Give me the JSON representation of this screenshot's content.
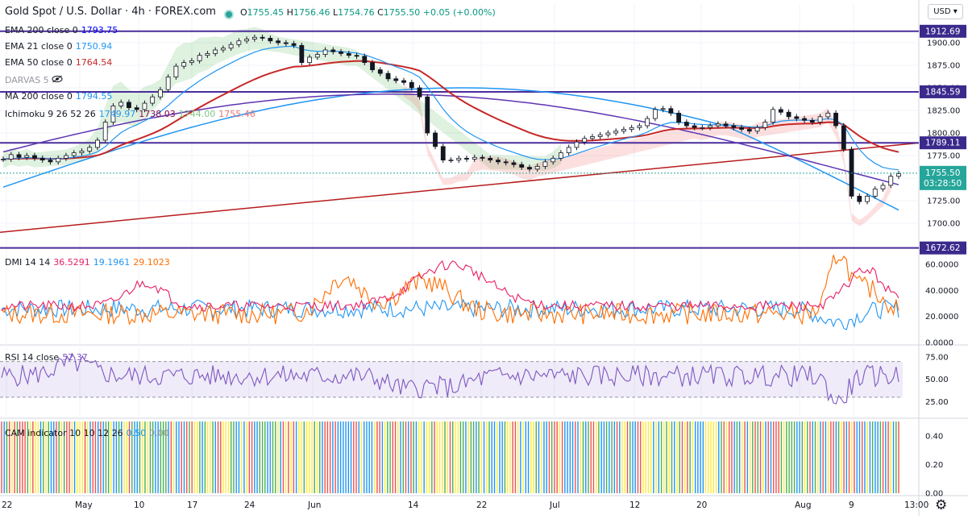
{
  "header": {
    "title": "Gold Spot / U.S. Dollar · 4h · FOREX.com",
    "ohlc": [
      {
        "k": "O",
        "v": "1755.45"
      },
      {
        "k": "H",
        "v": "1756.46"
      },
      {
        "k": "L",
        "v": "1754.76"
      },
      {
        "k": "C",
        "v": "1755.50"
      },
      {
        "k": "",
        "v": "+0.05 (+0.00%)"
      }
    ],
    "currency_button": "USD"
  },
  "legends": {
    "ema200": {
      "label": "EMA 200 close 0",
      "value": "1793.75",
      "color": "#0000ff"
    },
    "ema21": {
      "label": "EMA 21 close 0",
      "value": "1750.94",
      "color": "#2196f3"
    },
    "ema50": {
      "label": "EMA 50 close 0",
      "value": "1764.54",
      "color": "#c62828"
    },
    "darvas": {
      "label": "DARVAS 5"
    },
    "ma200": {
      "label": "MA 200 close 0",
      "value": "1794.55",
      "color": "#2196f3"
    },
    "ichimoku": {
      "label": "Ichimoku 9 26 52 26",
      "values": [
        "1749.97",
        "1738.03",
        "1744.00",
        "1755.46"
      ],
      "colors": [
        "#2196f3",
        "#880e4f",
        "#a5d6a7",
        "#ef9a9a"
      ]
    },
    "dmi": {
      "label": "DMI 14 14",
      "values": [
        "36.5291",
        "19.1961",
        "29.1023"
      ],
      "colors": [
        "#e91e63",
        "#2196f3",
        "#ff6d00"
      ]
    },
    "rsi": {
      "label": "RSI 14 close",
      "value": "52.37",
      "color": "#7e57c2"
    },
    "cam": {
      "label": "CAM indicator 10 10 12 26",
      "values": [
        "0.50",
        "0.00"
      ],
      "colors": [
        "#2196f3",
        "#9598a1"
      ]
    }
  },
  "price_axis": {
    "ticks": [
      "1900.00",
      "1875.00",
      "1850.00",
      "1825.00",
      "1800.00",
      "1775.00",
      "1750.00",
      "1725.00",
      "1700.00"
    ],
    "labels": [
      {
        "text": "1912.69",
        "bg": "#3b2a8c"
      },
      {
        "text": "1845.59",
        "bg": "#3b2a8c"
      },
      {
        "text": "1789.11",
        "bg": "#3b2a8c"
      },
      {
        "text": "1672.62",
        "bg": "#3b2a8c"
      }
    ],
    "last": {
      "price": "1755.50",
      "countdown": "03:28:50",
      "bg": "#26a69a"
    }
  },
  "dmi_axis": [
    "60.0000",
    "40.0000",
    "20.0000",
    "0.0000"
  ],
  "rsi_axis": [
    "75.00",
    "50.00",
    "25.00"
  ],
  "cam_axis": [
    "0.40",
    "0.20",
    "0.00"
  ],
  "time_axis": [
    "22",
    "May",
    "10",
    "17",
    "24",
    "Jun",
    "14",
    "22",
    "Jul",
    "12",
    "20",
    "Aug",
    "9",
    "13:00"
  ],
  "chart_data": {
    "type": "candlestick",
    "symbol": "Gold Spot / U.S. Dollar",
    "interval": "4h",
    "price_levels": [
      1912.69,
      1845.59,
      1789.11,
      1672.62
    ],
    "price_range": [
      1675,
      1925
    ],
    "trendline": {
      "from": 1690,
      "to": 1789
    },
    "closes": [
      1771,
      1776,
      1773,
      1775,
      1772,
      1770,
      1768,
      1772,
      1775,
      1778,
      1780,
      1784,
      1792,
      1812,
      1830,
      1834,
      1828,
      1826,
      1833,
      1840,
      1848,
      1862,
      1874,
      1878,
      1880,
      1886,
      1888,
      1892,
      1894,
      1898,
      1902,
      1904,
      1906,
      1905,
      1902,
      1900,
      1899,
      1897,
      1878,
      1884,
      1887,
      1892,
      1890,
      1888,
      1886,
      1885,
      1878,
      1870,
      1866,
      1860,
      1858,
      1856,
      1850,
      1840,
      1800,
      1785,
      1770,
      1770,
      1772,
      1771,
      1773,
      1772,
      1770,
      1768,
      1767,
      1765,
      1762,
      1760,
      1763,
      1768,
      1772,
      1778,
      1784,
      1790,
      1794,
      1796,
      1798,
      1800,
      1802,
      1804,
      1806,
      1808,
      1816,
      1826,
      1827,
      1822,
      1812,
      1808,
      1806,
      1806,
      1808,
      1810,
      1808,
      1806,
      1804,
      1802,
      1806,
      1812,
      1826,
      1823,
      1818,
      1816,
      1814,
      1812,
      1818,
      1822,
      1808,
      1782,
      1730,
      1724,
      1730,
      1738,
      1742,
      1752,
      1755
    ],
    "ema21_end": 1750.94,
    "ema50_end": 1764.54,
    "ema200_end": 1793.75,
    "ma200_end": 1794.55,
    "dmi": {
      "plus_last": 19.1961,
      "minus_last": 29.1023,
      "adx_last": 36.5291,
      "range": [
        0,
        70
      ]
    },
    "rsi": {
      "last": 52.37,
      "range": [
        10,
        85
      ],
      "band": [
        30,
        70
      ]
    },
    "cam": {
      "range": [
        0,
        0.5
      ],
      "colors": [
        "#2196f3",
        "#ef5350",
        "#ffeb3b",
        "#4caf50"
      ]
    }
  }
}
